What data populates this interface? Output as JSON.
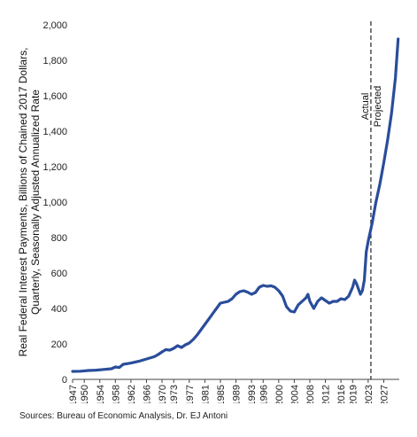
{
  "chart_data": {
    "type": "line",
    "ylabel_lines": [
      "Real Federal Interest Payments, Billions of Chained 2017 Dollars,",
      "Quarterly, Seasonally Adjusted Annualized Rate"
    ],
    "xlabel": "",
    "title": "",
    "ylim": [
      0,
      2000
    ],
    "yticks": [
      0,
      200,
      400,
      600,
      800,
      1000,
      1200,
      1400,
      1600,
      1800,
      2000
    ],
    "ytick_labels": [
      "0",
      "200",
      "400",
      "600",
      "800",
      "1,000",
      "1,200",
      "1,400",
      "1,600",
      "1,800",
      "2,000"
    ],
    "xlim": [
      1947,
      2031
    ],
    "xticks": [
      "1947",
      "1950",
      "1954",
      "1958",
      "1962",
      "1966",
      "1970",
      "1973",
      "1977",
      "1981",
      "1985",
      "1989",
      "1993",
      "1996",
      "2000",
      "2004",
      "2008",
      "2012",
      "2016",
      "2019",
      "2023",
      "2027"
    ],
    "grid": false,
    "line_color": "#2a4d9b",
    "divider": {
      "x": 2023.7,
      "label_left": "Actual",
      "label_right": "Projected"
    },
    "series": [
      {
        "x": [
          1947,
          1949,
          1951,
          1953,
          1955,
          1957,
          1958,
          1959,
          1960,
          1962,
          1964,
          1966,
          1968,
          1969,
          1970,
          1971,
          1972,
          1973,
          1974,
          1975,
          1976,
          1977,
          1978,
          1979,
          1980,
          1981,
          1982,
          1983,
          1984,
          1985,
          1986,
          1987,
          1988,
          1989,
          1990,
          1991,
          1992,
          1993,
          1994,
          1995,
          1996,
          1997,
          1998,
          1999,
          2000,
          2001,
          2002,
          2003,
          2004,
          2005,
          2006,
          2007,
          2007.5,
          2008,
          2009,
          2010,
          2011,
          2012,
          2013,
          2014,
          2015,
          2016,
          2017,
          2018,
          2019,
          2019.5,
          2020,
          2021,
          2021.5,
          2022,
          2022.5,
          2023,
          2024,
          2025,
          2026,
          2027,
          2028,
          2029,
          2030,
          2030.7
        ],
        "values": [
          45,
          46,
          50,
          52,
          56,
          60,
          70,
          67,
          85,
          92,
          102,
          115,
          128,
          140,
          155,
          168,
          165,
          175,
          190,
          180,
          195,
          205,
          225,
          250,
          280,
          310,
          340,
          370,
          400,
          430,
          435,
          440,
          455,
          480,
          495,
          500,
          492,
          480,
          490,
          520,
          530,
          525,
          528,
          520,
          500,
          470,
          410,
          385,
          380,
          420,
          440,
          460,
          480,
          440,
          400,
          440,
          460,
          445,
          430,
          440,
          440,
          455,
          450,
          470,
          520,
          560,
          540,
          480,
          500,
          560,
          720,
          780,
          880,
          1000,
          1100,
          1220,
          1350,
          1500,
          1700,
          1920
        ]
      }
    ]
  },
  "source_text": "Sources: Bureau of Economic Analysis, Dr. EJ Antoni"
}
